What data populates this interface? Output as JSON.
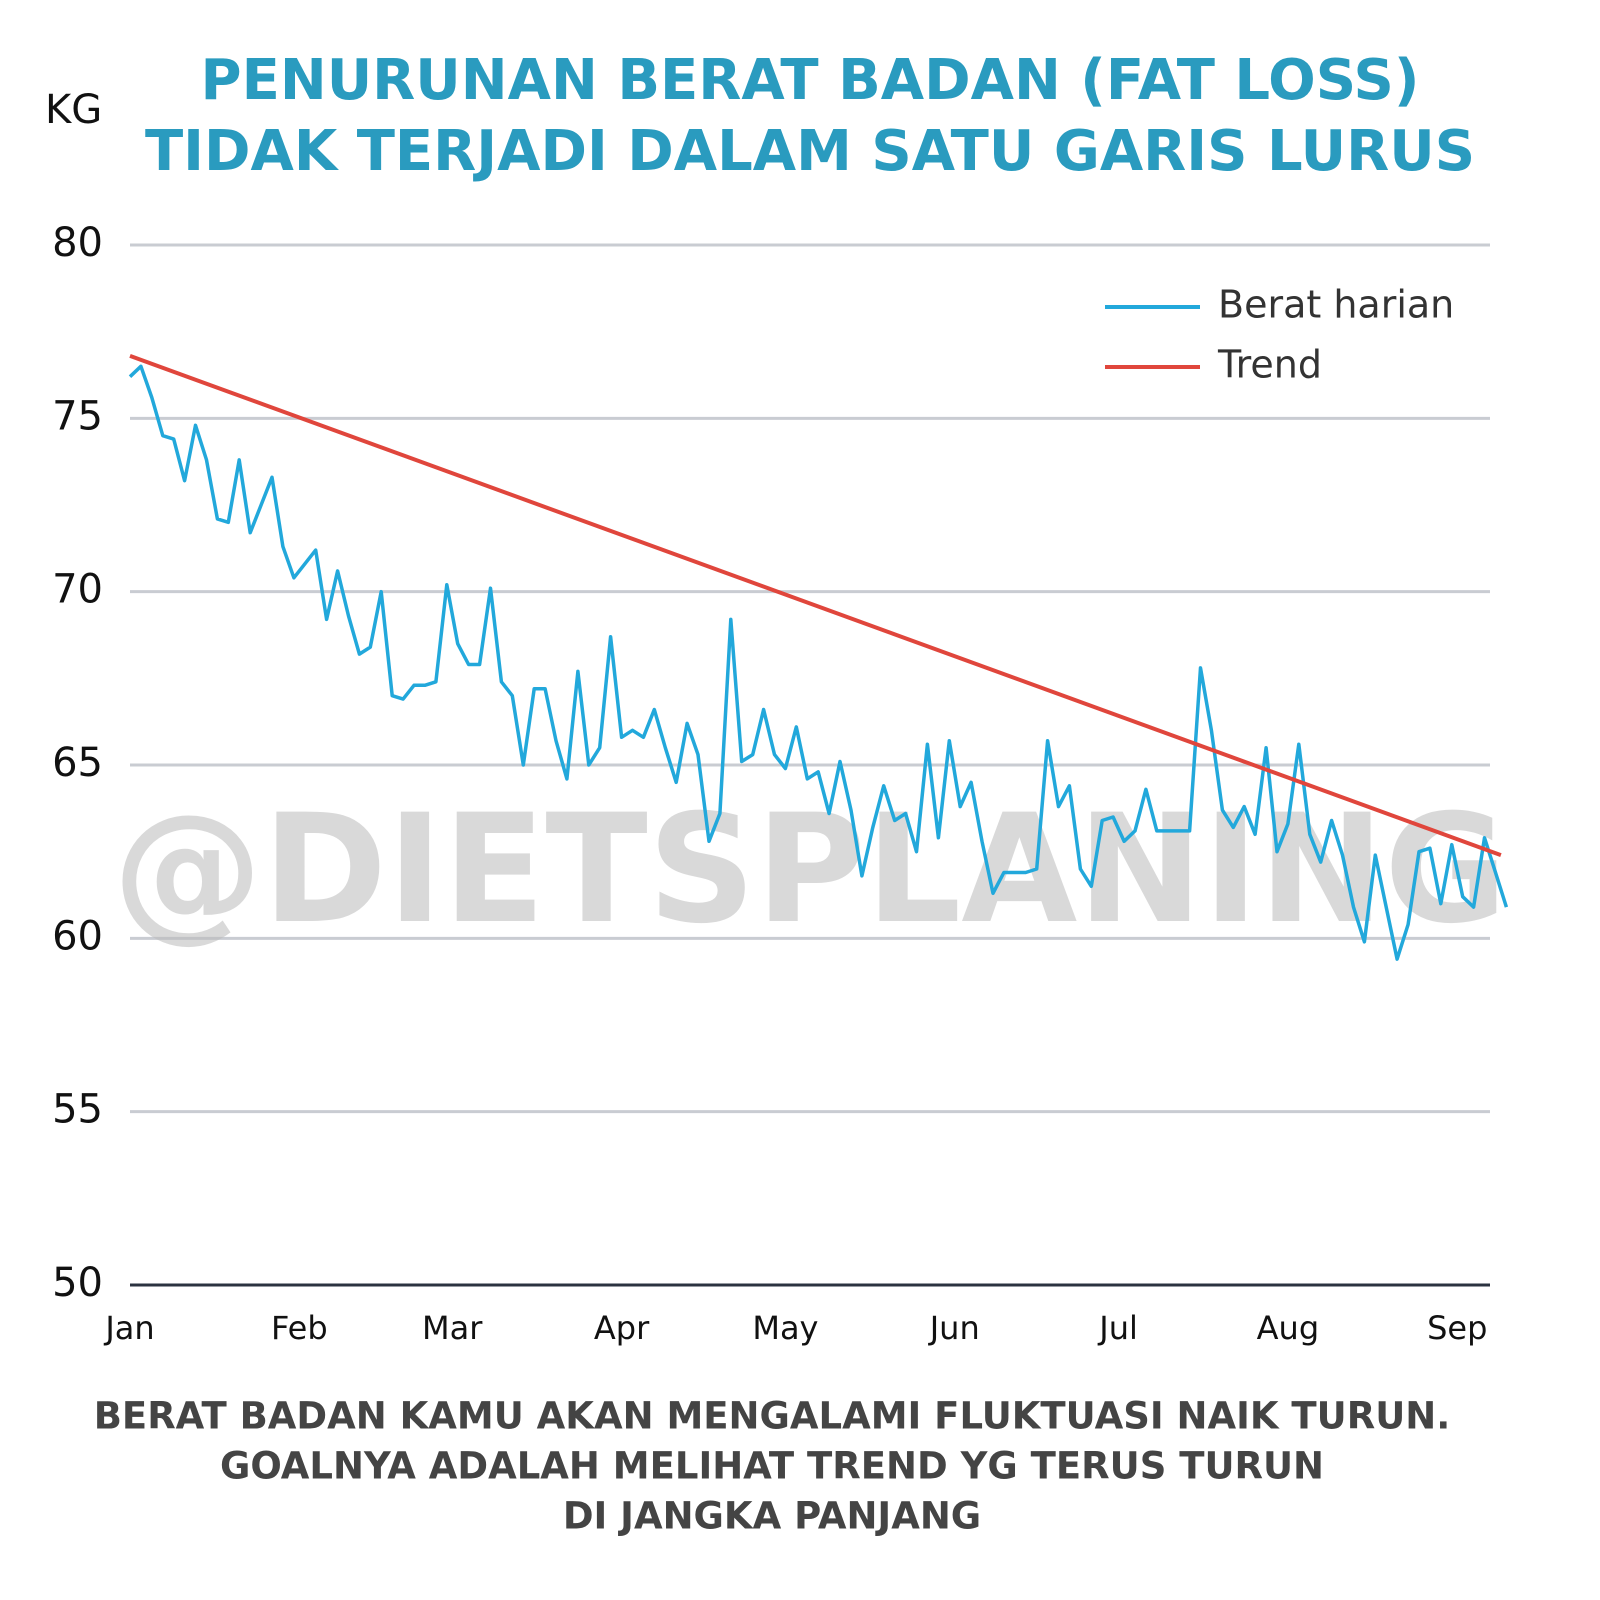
{
  "chart_data": {
    "type": "line",
    "title": [
      "PENURUNAN BERAT BADAN (FAT LOSS)",
      "TIDAK TERJADI DALAM SATU GARIS LURUS"
    ],
    "ylabel": "KG",
    "note": [
      "BERAT BADAN KAMU AKAN MENGALAMI FLUKTUASI NAIK TURUN.",
      "GOALNYA ADALAH MELIHAT TREND YG TERUS TURUN",
      "DI JANGKA PANJANG"
    ],
    "watermark": "@DIETSPLANING",
    "xlim": [
      0,
      249
    ],
    "xticks": [
      {
        "value": 0,
        "label": "Jan"
      },
      {
        "value": 31,
        "label": "Feb"
      },
      {
        "value": 59,
        "label": "Mar"
      },
      {
        "value": 90,
        "label": "Apr"
      },
      {
        "value": 120,
        "label": "May"
      },
      {
        "value": 151,
        "label": "Jun"
      },
      {
        "value": 181,
        "label": "Jul"
      },
      {
        "value": 212,
        "label": "Aug"
      },
      {
        "value": 243,
        "label": "Sep"
      }
    ],
    "ylim": [
      50,
      80
    ],
    "yticks": [
      50,
      55,
      60,
      65,
      70,
      75,
      80
    ],
    "grid": true,
    "legend": "upper right",
    "series": [
      {
        "name": "Berat harian",
        "color": "#22a8db",
        "x": [
          0,
          2,
          4,
          6,
          8,
          10,
          12,
          14,
          16,
          18,
          20,
          22,
          24,
          26,
          28,
          30,
          32,
          34,
          36,
          38,
          40,
          42,
          44,
          46,
          48,
          50,
          52,
          54,
          56,
          58,
          60,
          62,
          64,
          66,
          68,
          70,
          72,
          74,
          76,
          78,
          80,
          82,
          84,
          86,
          88,
          90,
          92,
          94,
          96,
          98,
          100,
          102,
          104,
          106,
          108,
          110,
          112,
          114,
          116,
          118,
          120,
          122,
          124,
          126,
          128,
          130,
          132,
          134,
          136,
          138,
          140,
          142,
          144,
          146,
          148,
          150,
          152,
          154,
          156,
          158,
          160,
          162,
          164,
          166,
          168,
          170,
          172,
          174,
          176,
          178,
          180,
          182,
          184,
          186,
          188,
          190,
          192,
          194,
          196,
          198,
          200,
          202,
          204,
          206,
          208,
          210,
          212,
          214,
          216,
          218,
          220,
          222,
          224,
          226,
          228,
          230,
          232,
          234,
          236,
          238,
          240,
          242,
          244,
          246,
          248,
          250,
          252
        ],
        "values": [
          76.2,
          76.5,
          75.6,
          74.5,
          74.4,
          73.2,
          74.8,
          73.8,
          72.1,
          72.0,
          73.8,
          71.7,
          72.5,
          73.3,
          71.3,
          70.4,
          70.8,
          71.2,
          69.2,
          70.6,
          69.3,
          68.2,
          68.4,
          70.0,
          67.0,
          66.9,
          67.3,
          67.3,
          67.4,
          70.2,
          68.5,
          67.9,
          67.9,
          70.1,
          67.4,
          67.0,
          65.0,
          67.2,
          67.2,
          65.7,
          64.6,
          67.7,
          65.0,
          65.5,
          68.7,
          65.8,
          66.0,
          65.8,
          66.6,
          65.5,
          64.5,
          66.2,
          65.3,
          62.8,
          63.6,
          69.2,
          65.1,
          65.3,
          66.6,
          65.3,
          64.9,
          66.1,
          64.6,
          64.8,
          63.6,
          65.1,
          63.7,
          61.8,
          63.2,
          64.4,
          63.4,
          63.6,
          62.5,
          65.6,
          62.9,
          65.7,
          63.8,
          64.5,
          62.8,
          61.3,
          61.9,
          61.9,
          61.9,
          62.0,
          65.7,
          63.8,
          64.4,
          62.0,
          61.5,
          63.4,
          63.5,
          62.8,
          63.1,
          64.3,
          63.1,
          63.1,
          63.1,
          63.1,
          67.8,
          66.0,
          63.7,
          63.2,
          63.8,
          63.0,
          65.5,
          62.5,
          63.3,
          65.6,
          63.0,
          62.2,
          63.4,
          62.4,
          60.9,
          59.9,
          62.4,
          60.9,
          59.4,
          60.4,
          62.5,
          62.6,
          61.0,
          62.7,
          61.2,
          60.9,
          62.9,
          61.9,
          60.9
        ]
      },
      {
        "name": "Trend",
        "color": "#e0463c",
        "x": [
          0,
          251
        ],
        "values": [
          76.8,
          62.4
        ]
      }
    ]
  }
}
